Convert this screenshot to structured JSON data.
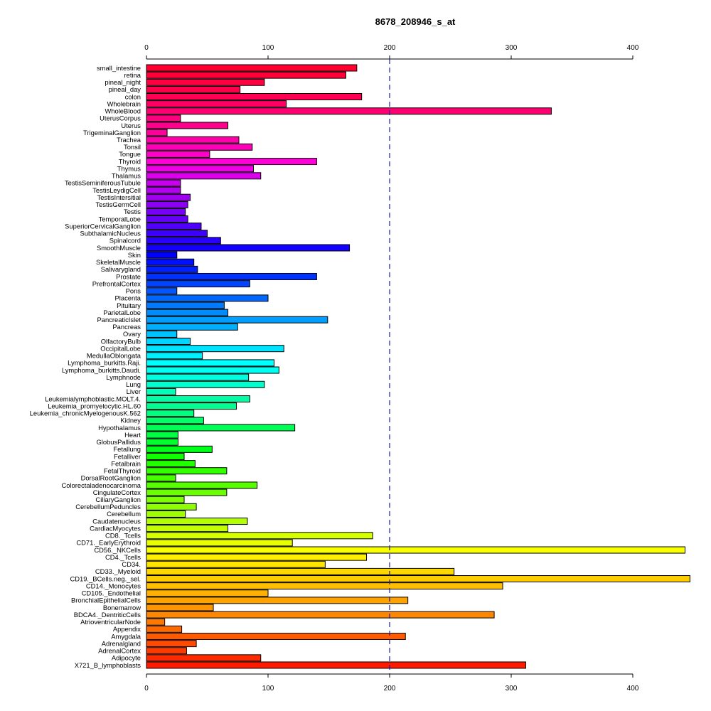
{
  "chart_data": {
    "type": "bar",
    "orientation": "horizontal",
    "title": "8678_208946_s_at",
    "xlabel": "",
    "ylabel": "",
    "xlim": [
      0,
      400
    ],
    "xticks": [
      0,
      100,
      200,
      300,
      400
    ],
    "xtick_labels": [
      "0",
      "100",
      "200",
      "300",
      "400"
    ],
    "reference_line": 200,
    "grid": false,
    "legend": "none",
    "categories": [
      "small_intestine",
      "retina",
      "pineal_night",
      "pineal_day",
      "colon",
      "Wholebrain",
      "WholeBlood",
      "UterusCorpus",
      "Uterus",
      "TrigeminalGanglion",
      "Trachea",
      "Tonsil",
      "Tongue",
      "Thyroid",
      "Thymus",
      "Thalamus",
      "TestisSeminiferousTubule",
      "TestisLeydigCell",
      "TestisIntersitial",
      "TestisGermCell",
      "Testis",
      "TemporalLobe",
      "SuperiorCervicalGanglion",
      "SubthalamicNucleus",
      "Spinalcord",
      "SmoothMuscle",
      "Skin",
      "SkeletalMuscle",
      "Salivarygland",
      "Prostate",
      "PrefrontalCortex",
      "Pons",
      "Placenta",
      "Pituitary",
      "ParietalLobe",
      "PancreaticIslet",
      "Pancreas",
      "Ovary",
      "OlfactoryBulb",
      "OccipitalLobe",
      "MedullaOblongata",
      "Lymphoma_burkitts.Raji.",
      "Lymphoma_burkitts.Daudi.",
      "Lymphnode",
      "Lung",
      "Liver",
      "Leukemialymphoblastic.MOLT.4.",
      "Leukemia_promyelocytic.HL.60",
      "Leukemia_chronicMyelogenousK.562",
      "Kidney",
      "Hypothalamus",
      "Heart",
      "GlobusPallidus",
      "Fetallung",
      "Fetalliver",
      "Fetalbrain",
      "FetalThyroid",
      "DorsalRootGanglion",
      "Colorectaladenocarcinoma",
      "CingulateCortex",
      "CiliaryGanglion",
      "CerebellumPeduncles",
      "Cerebellum",
      "Caudatenucleus",
      "CardiacMyocytes",
      "CD8._Tcells",
      "CD71._EarlyErythroid",
      "CD56._NKCells",
      "CD4._Tcells",
      "CD34.",
      "CD33._Myeloid",
      "CD19._BCells.neg._sel.",
      "CD14._Monocytes",
      "CD105._Endothelial",
      "BronchialEpithelialCells",
      "Bonemarrow",
      "BDCA4._DentriticCells",
      "AtrioventricularNode",
      "Appendix",
      "Amygdala",
      "Adrenalgland",
      "AdrenalCortex",
      "Adipocyte",
      "X721_B_lymphoblasts"
    ],
    "values": [
      173,
      164,
      97,
      77,
      177,
      115,
      333,
      28,
      67,
      17,
      76,
      87,
      52,
      140,
      88,
      94,
      28,
      28,
      36,
      34,
      32,
      34,
      45,
      50,
      61,
      167,
      25,
      39,
      42,
      140,
      85,
      25,
      100,
      64,
      67,
      149,
      75,
      25,
      36,
      113,
      46,
      105,
      109,
      84,
      97,
      24,
      85,
      74,
      39,
      47,
      122,
      26,
      26,
      54,
      31,
      40,
      66,
      24,
      91,
      66,
      31,
      41,
      32,
      83,
      67,
      186,
      120,
      443,
      181,
      147,
      253,
      447,
      293,
      100,
      215,
      55,
      286,
      15,
      29,
      213,
      41,
      33,
      94,
      312
    ],
    "colors": [
      "#ff0030",
      "#ff0038",
      "#ff0040",
      "#ff004a",
      "#ff0055",
      "#ff0062",
      "#ff0070",
      "#ff007e",
      "#ff008c",
      "#ff009a",
      "#ff00a8",
      "#ff00b8",
      "#ff00c8",
      "#ff00d8",
      "#ef00e8",
      "#dc00ec",
      "#c800ee",
      "#b400f0",
      "#a000f2",
      "#8c00f4",
      "#7800f6",
      "#6400f8",
      "#5000fa",
      "#3c00fc",
      "#2800fe",
      "#1400ff",
      "#0000ff",
      "#0010ff",
      "#0020ff",
      "#0032ff",
      "#0044ff",
      "#0056ff",
      "#0068ff",
      "#007aff",
      "#008cff",
      "#009eff",
      "#00b0ff",
      "#00c2ff",
      "#00d4ff",
      "#00e4ff",
      "#00f0ff",
      "#00ffff",
      "#00fff0",
      "#00ffe0",
      "#00ffcc",
      "#00ffb8",
      "#00ffa4",
      "#00ff90",
      "#00ff7c",
      "#00ff68",
      "#00ff54",
      "#00ff40",
      "#00ff2c",
      "#00ff18",
      "#10ff00",
      "#22ff00",
      "#34ff00",
      "#46ff00",
      "#58ff00",
      "#6aff00",
      "#7cff00",
      "#8eff00",
      "#a0ff00",
      "#b2ff00",
      "#c4ff00",
      "#d6ff00",
      "#e8ff00",
      "#f8ff00",
      "#fff000",
      "#ffe400",
      "#ffd800",
      "#ffcc00",
      "#ffbe00",
      "#ffb000",
      "#ffa200",
      "#ff9400",
      "#ff8600",
      "#ff7800",
      "#ff6a00",
      "#ff5a00",
      "#ff4a00",
      "#ff3a00",
      "#ff2a00",
      "#ff1a00"
    ]
  }
}
